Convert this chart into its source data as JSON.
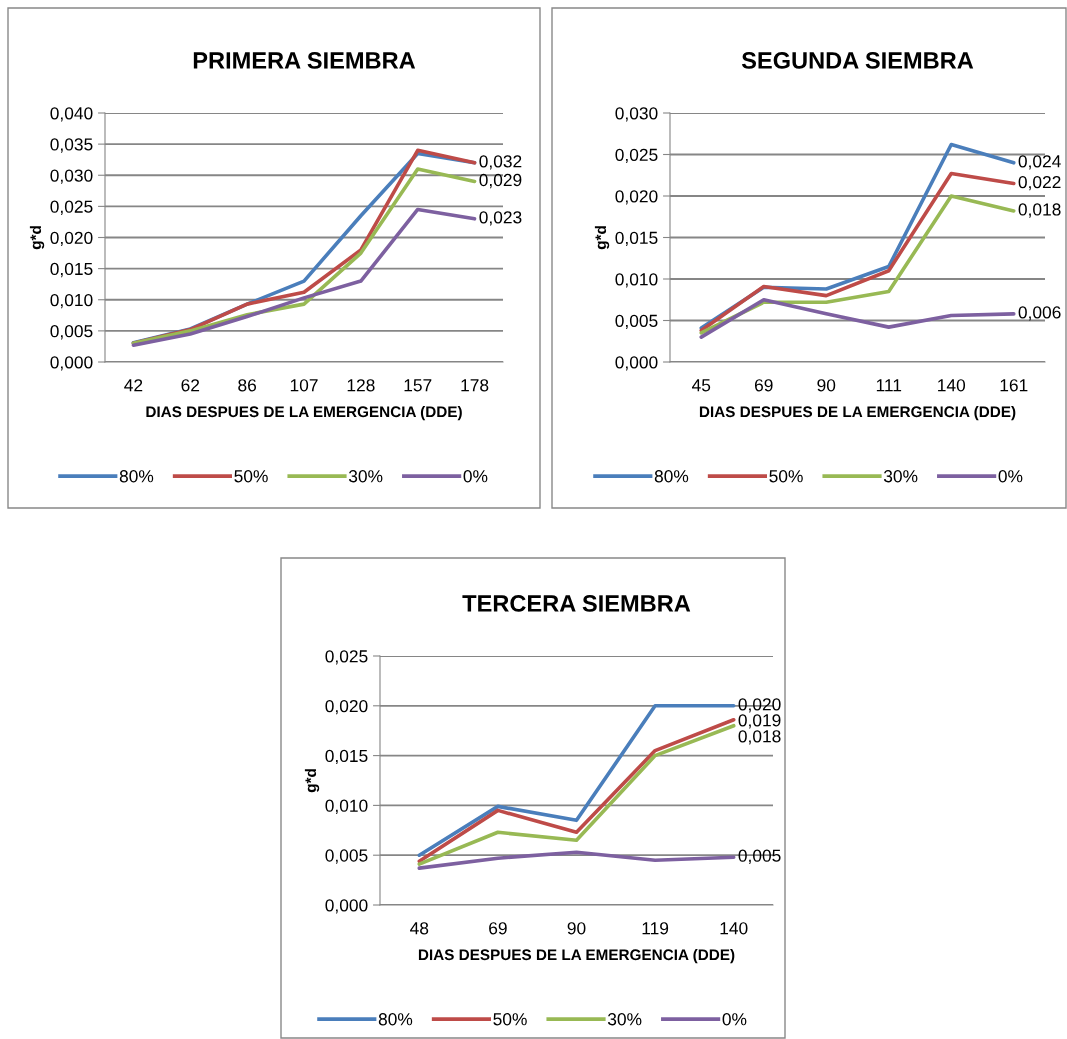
{
  "chart_data": [
    {
      "type": "line",
      "title": "PRIMERA SIEMBRA",
      "xlabel": "DIAS DESPUES DE LA EMERGENCIA (DDE)",
      "ylabel": "g*d",
      "categories": [
        "42",
        "62",
        "86",
        "107",
        "128",
        "157",
        "178"
      ],
      "ylim": [
        0,
        0.04
      ],
      "yticks": [
        {
          "value": 0,
          "label": "0,000"
        },
        {
          "value": 0.005,
          "label": "0,005"
        },
        {
          "value": 0.01,
          "label": "0,010"
        },
        {
          "value": 0.015,
          "label": "0,015"
        },
        {
          "value": 0.02,
          "label": "0,020"
        },
        {
          "value": 0.025,
          "label": "0,025"
        },
        {
          "value": 0.03,
          "label": "0,030"
        },
        {
          "value": 0.035,
          "label": "0,035"
        },
        {
          "value": 0.04,
          "label": "0,040"
        }
      ],
      "grid": "y",
      "legend": "bottom",
      "marker": "none",
      "line_style": "solid",
      "series": [
        {
          "name": "80%",
          "color": "#4a7ebb",
          "values": [
            0.0031,
            0.0053,
            0.0093,
            0.013,
            0.0235,
            0.0335,
            0.032
          ]
        },
        {
          "name": "50%",
          "color": "#be4b48",
          "values": [
            0.003,
            0.0052,
            0.0093,
            0.0112,
            0.018,
            0.034,
            0.032
          ],
          "value_labels": [
            null,
            null,
            null,
            null,
            null,
            null,
            "0,032"
          ]
        },
        {
          "name": "30%",
          "color": "#98b954",
          "values": [
            0.003,
            0.005,
            0.0076,
            0.0093,
            0.0175,
            0.031,
            0.029
          ],
          "value_labels": [
            null,
            null,
            null,
            null,
            null,
            null,
            "0,029"
          ]
        },
        {
          "name": "0%",
          "color": "#7d60a0",
          "values": [
            0.0027,
            0.0045,
            0.0073,
            0.0103,
            0.013,
            0.0245,
            0.023
          ],
          "value_labels": [
            null,
            null,
            null,
            null,
            null,
            null,
            "0,023"
          ]
        }
      ]
    },
    {
      "type": "line",
      "title": "SEGUNDA SIEMBRA",
      "xlabel": "DIAS DESPUES DE LA EMERGENCIA (DDE)",
      "ylabel": "g*d",
      "categories": [
        "45",
        "69",
        "90",
        "111",
        "140",
        "161"
      ],
      "ylim": [
        0,
        0.03
      ],
      "yticks": [
        {
          "value": 0,
          "label": "0,000"
        },
        {
          "value": 0.005,
          "label": "0,005"
        },
        {
          "value": 0.01,
          "label": "0,010"
        },
        {
          "value": 0.015,
          "label": "0,015"
        },
        {
          "value": 0.02,
          "label": "0,020"
        },
        {
          "value": 0.025,
          "label": "0,025"
        },
        {
          "value": 0.03,
          "label": "0,030"
        }
      ],
      "grid": "y",
      "legend": "bottom",
      "marker": "none",
      "line_style": "solid",
      "series": [
        {
          "name": "80%",
          "color": "#4a7ebb",
          "values": [
            0.0041,
            0.009,
            0.0088,
            0.0115,
            0.0262,
            0.024
          ],
          "value_labels": [
            null,
            null,
            null,
            null,
            null,
            "0,024"
          ]
        },
        {
          "name": "50%",
          "color": "#be4b48",
          "values": [
            0.0038,
            0.0091,
            0.008,
            0.011,
            0.0227,
            0.0215
          ],
          "value_labels": [
            null,
            null,
            null,
            null,
            null,
            "0,022"
          ]
        },
        {
          "name": "30%",
          "color": "#98b954",
          "values": [
            0.0035,
            0.0072,
            0.0072,
            0.0085,
            0.02,
            0.0182
          ],
          "value_labels": [
            null,
            null,
            null,
            null,
            null,
            "0,018"
          ]
        },
        {
          "name": "0%",
          "color": "#7d60a0",
          "values": [
            0.003,
            0.0075,
            0.0058,
            0.0042,
            0.0056,
            0.0058
          ],
          "value_labels": [
            null,
            null,
            null,
            null,
            null,
            "0,006"
          ]
        }
      ]
    },
    {
      "type": "line",
      "title": "TERCERA SIEMBRA",
      "xlabel": "DIAS DESPUES DE LA EMERGENCIA (DDE)",
      "ylabel": "g*d",
      "categories": [
        "48",
        "69",
        "90",
        "119",
        "140"
      ],
      "ylim": [
        0,
        0.025
      ],
      "yticks": [
        {
          "value": 0,
          "label": "0,000"
        },
        {
          "value": 0.005,
          "label": "0,005"
        },
        {
          "value": 0.01,
          "label": "0,010"
        },
        {
          "value": 0.015,
          "label": "0,015"
        },
        {
          "value": 0.02,
          "label": "0,020"
        },
        {
          "value": 0.025,
          "label": "0,025"
        }
      ],
      "grid": "y",
      "legend": "bottom",
      "marker": "none",
      "line_style": "solid",
      "series": [
        {
          "name": "80%",
          "color": "#4a7ebb",
          "values": [
            0.005,
            0.0099,
            0.0085,
            0.02,
            0.02
          ],
          "value_labels": [
            null,
            null,
            null,
            null,
            "0,020"
          ]
        },
        {
          "name": "50%",
          "color": "#be4b48",
          "values": [
            0.0044,
            0.0095,
            0.0073,
            0.0155,
            0.0186
          ],
          "value_labels": [
            null,
            null,
            null,
            null,
            "0,019"
          ]
        },
        {
          "name": "30%",
          "color": "#98b954",
          "values": [
            0.0041,
            0.0073,
            0.0065,
            0.015,
            0.018
          ],
          "value_labels": [
            null,
            null,
            null,
            null,
            "0,018"
          ]
        },
        {
          "name": "0%",
          "color": "#7d60a0",
          "values": [
            0.0037,
            0.0047,
            0.0053,
            0.0045,
            0.0048
          ],
          "value_labels": [
            null,
            null,
            null,
            null,
            "0,005"
          ]
        }
      ]
    }
  ]
}
